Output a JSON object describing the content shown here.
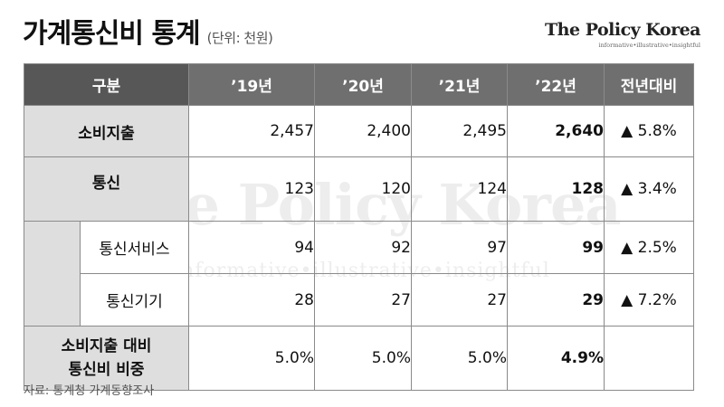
{
  "header": {
    "title": "가계통신비 통계",
    "unit": "(단위: 천원)"
  },
  "brand": {
    "name": "The Policy Korea",
    "tagline": "informative•illustrative•insightful"
  },
  "watermark": {
    "line1": "The Policy Korea",
    "line2": "informative•illustrative•insightful"
  },
  "table": {
    "columns": [
      "구분",
      "’19년",
      "’20년",
      "’21년",
      "’22년",
      "전년대비"
    ],
    "rows": [
      {
        "label": "소비지출",
        "values": [
          "2,457",
          "2,400",
          "2,495",
          "2,640"
        ],
        "yoy": "▲ 5.8%"
      },
      {
        "label": "통신",
        "values": [
          "123",
          "120",
          "124",
          "128"
        ],
        "yoy": "▲ 3.4%"
      },
      {
        "label": "통신서비스",
        "values": [
          "94",
          "92",
          "97",
          "99"
        ],
        "yoy": "▲ 2.5%"
      },
      {
        "label": "통신기기",
        "values": [
          "28",
          "27",
          "27",
          "29"
        ],
        "yoy": "▲ 7.2%"
      },
      {
        "label_line1": "소비지출 대비",
        "label_line2": "통신비 비중",
        "values": [
          "5.0%",
          "5.0%",
          "5.0%",
          "4.9%"
        ],
        "yoy": ""
      }
    ]
  },
  "source": "자료: 통계청 가계동향조사",
  "colors": {
    "header_bg": "#6f6f6f",
    "header_first_bg": "#575757",
    "category_bg": "#dedede",
    "border": "#8a8a8a"
  }
}
